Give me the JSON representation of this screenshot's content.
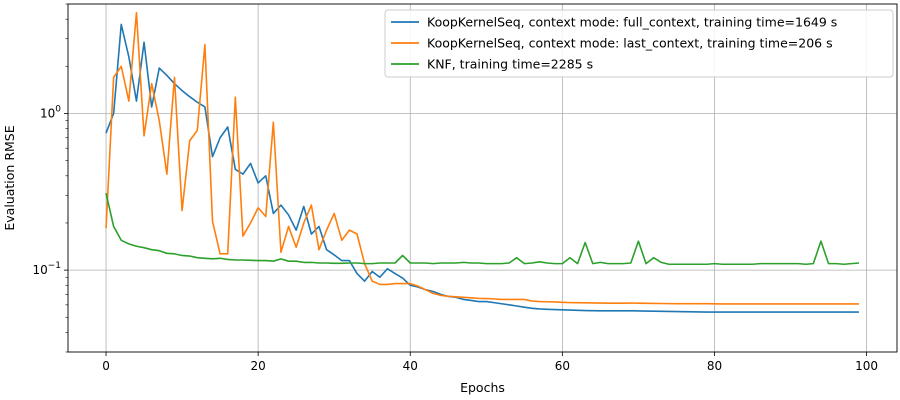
{
  "chart_data": {
    "type": "line",
    "xlabel": "Epochs",
    "ylabel": "Evaluation RMSE",
    "xlim": [
      -5,
      104
    ],
    "ylim": [
      0.03,
      5.0
    ],
    "yscale": "log",
    "grid": true,
    "legend_position": "top-right",
    "xticks": [
      0,
      20,
      40,
      60,
      80,
      100
    ],
    "xtick_labels": [
      "0",
      "20",
      "40",
      "60",
      "80",
      "100"
    ],
    "yticks": [
      0.1,
      1
    ],
    "ytick_labels_base": [
      "10",
      "10"
    ],
    "ytick_labels_exp": [
      "−1",
      "0"
    ],
    "series": [
      {
        "name": "KoopKernelSeq, context mode: full_context, training time=1649 s",
        "color": "#1f77b4",
        "x": [
          0,
          1,
          2,
          3,
          4,
          5,
          6,
          7,
          8,
          9,
          10,
          11,
          12,
          13,
          14,
          15,
          16,
          17,
          18,
          19,
          20,
          21,
          22,
          23,
          24,
          25,
          26,
          27,
          28,
          29,
          30,
          31,
          32,
          33,
          34,
          35,
          36,
          37,
          38,
          39,
          40,
          41,
          42,
          43,
          44,
          45,
          46,
          47,
          48,
          49,
          50,
          51,
          52,
          53,
          54,
          55,
          56,
          57,
          58,
          59,
          60,
          61,
          62,
          63,
          64,
          65,
          66,
          67,
          68,
          69,
          70,
          71,
          72,
          73,
          74,
          75,
          76,
          77,
          78,
          79,
          80,
          81,
          82,
          83,
          84,
          85,
          86,
          87,
          88,
          89,
          90,
          91,
          92,
          93,
          94,
          95,
          96,
          97,
          98,
          99
        ],
        "y": [
          0.75,
          1.0,
          3.7,
          2.3,
          1.2,
          2.85,
          1.1,
          1.95,
          1.75,
          1.55,
          1.4,
          1.28,
          1.18,
          1.1,
          0.53,
          0.7,
          0.82,
          0.44,
          0.41,
          0.48,
          0.36,
          0.4,
          0.23,
          0.26,
          0.225,
          0.18,
          0.255,
          0.17,
          0.19,
          0.135,
          0.125,
          0.115,
          0.115,
          0.095,
          0.085,
          0.098,
          0.09,
          0.102,
          0.095,
          0.089,
          0.08,
          0.078,
          0.075,
          0.073,
          0.07,
          0.068,
          0.067,
          0.065,
          0.064,
          0.063,
          0.063,
          0.062,
          0.061,
          0.06,
          0.059,
          0.058,
          0.057,
          0.0565,
          0.0562,
          0.056,
          0.0558,
          0.0556,
          0.0554,
          0.0552,
          0.0551,
          0.055,
          0.055,
          0.055,
          0.055,
          0.055,
          0.0549,
          0.0548,
          0.0547,
          0.0546,
          0.0545,
          0.0544,
          0.0543,
          0.0542,
          0.0541,
          0.054,
          0.054,
          0.054,
          0.054,
          0.054,
          0.054,
          0.054,
          0.054,
          0.054,
          0.054,
          0.054,
          0.054,
          0.054,
          0.054,
          0.054,
          0.054,
          0.054,
          0.054,
          0.054,
          0.054,
          0.054
        ]
      },
      {
        "name": "KoopKernelSeq, context mode: last_context, training time=206 s",
        "color": "#ff7f0e",
        "x": [
          0,
          1,
          2,
          3,
          4,
          5,
          6,
          7,
          8,
          9,
          10,
          11,
          12,
          13,
          14,
          15,
          16,
          17,
          18,
          19,
          20,
          21,
          22,
          23,
          24,
          25,
          26,
          27,
          28,
          29,
          30,
          31,
          32,
          33,
          34,
          35,
          36,
          37,
          38,
          39,
          40,
          41,
          42,
          43,
          44,
          45,
          46,
          47,
          48,
          49,
          50,
          51,
          52,
          53,
          54,
          55,
          56,
          57,
          58,
          59,
          60,
          61,
          62,
          63,
          64,
          65,
          66,
          67,
          68,
          69,
          70,
          71,
          72,
          73,
          74,
          75,
          76,
          77,
          78,
          79,
          80,
          81,
          82,
          83,
          84,
          85,
          86,
          87,
          88,
          89,
          90,
          91,
          92,
          93,
          94,
          95,
          96,
          97,
          98,
          99
        ],
        "y": [
          0.185,
          1.7,
          2.0,
          1.2,
          4.4,
          0.72,
          1.55,
          0.9,
          0.41,
          1.7,
          0.24,
          0.67,
          0.78,
          2.75,
          0.205,
          0.127,
          0.127,
          1.27,
          0.165,
          0.2,
          0.25,
          0.22,
          0.88,
          0.13,
          0.19,
          0.14,
          0.2,
          0.26,
          0.135,
          0.18,
          0.23,
          0.155,
          0.18,
          0.17,
          0.11,
          0.085,
          0.081,
          0.081,
          0.082,
          0.082,
          0.082,
          0.079,
          0.075,
          0.071,
          0.069,
          0.068,
          0.0675,
          0.067,
          0.0665,
          0.066,
          0.0658,
          0.0655,
          0.065,
          0.065,
          0.065,
          0.065,
          0.0635,
          0.063,
          0.0628,
          0.0626,
          0.0623,
          0.062,
          0.0619,
          0.0618,
          0.0617,
          0.0616,
          0.0615,
          0.0615,
          0.0615,
          0.0616,
          0.0615,
          0.0614,
          0.0613,
          0.0612,
          0.0611,
          0.061,
          0.061,
          0.061,
          0.061,
          0.061,
          0.0609,
          0.0608,
          0.0608,
          0.0608,
          0.0608,
          0.0608,
          0.0608,
          0.0608,
          0.0608,
          0.0608,
          0.0608,
          0.0608,
          0.0608,
          0.0608,
          0.0608,
          0.0608,
          0.0608,
          0.0608,
          0.0608,
          0.0608
        ]
      },
      {
        "name": "KNF, training time=2285 s",
        "color": "#2ca02c",
        "x": [
          0,
          1,
          2,
          3,
          4,
          5,
          6,
          7,
          8,
          9,
          10,
          11,
          12,
          13,
          14,
          15,
          16,
          17,
          18,
          19,
          20,
          21,
          22,
          23,
          24,
          25,
          26,
          27,
          28,
          29,
          30,
          31,
          32,
          33,
          34,
          35,
          36,
          37,
          38,
          39,
          40,
          41,
          42,
          43,
          44,
          45,
          46,
          47,
          48,
          49,
          50,
          51,
          52,
          53,
          54,
          55,
          56,
          57,
          58,
          59,
          60,
          61,
          62,
          63,
          64,
          65,
          66,
          67,
          68,
          69,
          70,
          71,
          72,
          73,
          74,
          75,
          76,
          77,
          78,
          79,
          80,
          81,
          82,
          83,
          84,
          85,
          86,
          87,
          88,
          89,
          90,
          91,
          92,
          93,
          94,
          95,
          96,
          97,
          98,
          99
        ],
        "y": [
          0.31,
          0.19,
          0.155,
          0.147,
          0.142,
          0.139,
          0.135,
          0.133,
          0.128,
          0.127,
          0.124,
          0.123,
          0.12,
          0.119,
          0.118,
          0.119,
          0.117,
          0.116,
          0.116,
          0.1155,
          0.115,
          0.115,
          0.114,
          0.118,
          0.114,
          0.114,
          0.112,
          0.112,
          0.111,
          0.111,
          0.1105,
          0.1105,
          0.111,
          0.111,
          0.11,
          0.11,
          0.111,
          0.111,
          0.111,
          0.124,
          0.111,
          0.111,
          0.111,
          0.11,
          0.111,
          0.111,
          0.111,
          0.112,
          0.111,
          0.111,
          0.11,
          0.11,
          0.11,
          0.111,
          0.12,
          0.11,
          0.111,
          0.113,
          0.111,
          0.11,
          0.11,
          0.12,
          0.11,
          0.15,
          0.11,
          0.112,
          0.11,
          0.11,
          0.11,
          0.111,
          0.153,
          0.11,
          0.12,
          0.112,
          0.109,
          0.109,
          0.109,
          0.109,
          0.109,
          0.109,
          0.11,
          0.109,
          0.109,
          0.109,
          0.109,
          0.109,
          0.11,
          0.11,
          0.11,
          0.11,
          0.11,
          0.11,
          0.109,
          0.11,
          0.153,
          0.11,
          0.11,
          0.109,
          0.11,
          0.111
        ]
      }
    ]
  }
}
